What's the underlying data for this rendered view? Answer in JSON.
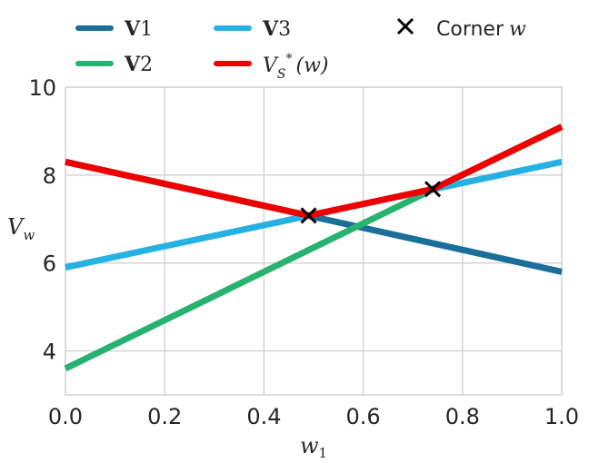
{
  "chart_data": {
    "type": "line",
    "xlabel": "w",
    "xlabel_sub": "1",
    "ylabel": "V",
    "ylabel_sub": "w",
    "xlim": [
      0.0,
      1.0
    ],
    "ylim": [
      3.0,
      10.0
    ],
    "xticks": [
      "0.0",
      "0.2",
      "0.4",
      "0.6",
      "0.8",
      "1.0"
    ],
    "yticks": [
      "4",
      "6",
      "8",
      "10"
    ],
    "grid": true,
    "legend_position": "top",
    "series": [
      {
        "name": "V1",
        "label_bold": "V",
        "label_sub": "1",
        "color": "#1a6f9a",
        "x": [
          0.0,
          1.0
        ],
        "y": [
          8.3,
          5.8
        ]
      },
      {
        "name": "V2",
        "label_bold": "V",
        "label_sub": "2",
        "color": "#27b36f",
        "x": [
          0.0,
          1.0
        ],
        "y": [
          3.6,
          9.1
        ]
      },
      {
        "name": "V3",
        "label_bold": "V",
        "label_sub": "3",
        "color": "#26b1e3",
        "x": [
          0.0,
          1.0
        ],
        "y": [
          5.9,
          8.3
        ]
      },
      {
        "name": "V_S*(w)",
        "label_bold": "V",
        "label_sub": "S",
        "label_sup": "*",
        "label_tail": "(w)",
        "color": "#ee0000",
        "x": [
          0.0,
          0.49,
          0.74,
          1.0
        ],
        "y": [
          8.3,
          7.08,
          7.68,
          9.1
        ]
      }
    ],
    "corner_points": {
      "label": "Corner",
      "label_var": "w",
      "marker_color": "#000000",
      "x": [
        0.49,
        0.74
      ],
      "y": [
        7.08,
        7.68
      ]
    }
  }
}
